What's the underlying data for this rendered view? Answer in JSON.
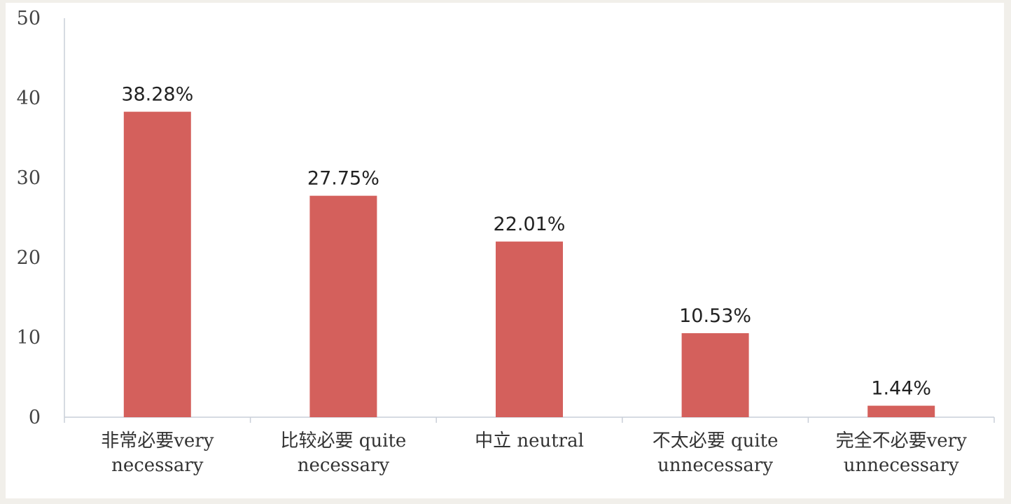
{
  "chart_data": {
    "type": "bar",
    "title": "",
    "xlabel": "",
    "ylabel": "",
    "ylim": [
      0,
      50
    ],
    "yticks": [
      "0",
      "10",
      "20",
      "30",
      "40",
      "50"
    ],
    "categories": [
      [
        "非常必要very",
        "necessary"
      ],
      [
        "比较必要 quite",
        "necessary"
      ],
      [
        "中立 neutral"
      ],
      [
        "不太必要 quite",
        "unnecessary"
      ],
      [
        "完全不必要very",
        "unnecessary"
      ]
    ],
    "values": [
      38.28,
      27.75,
      22.01,
      10.53,
      1.44
    ],
    "data_labels": [
      "38.28%",
      "27.75%",
      "22.01%",
      "10.53%",
      "1.44%"
    ],
    "bar_color": "#d4605c",
    "grid": false,
    "legend": "none"
  }
}
